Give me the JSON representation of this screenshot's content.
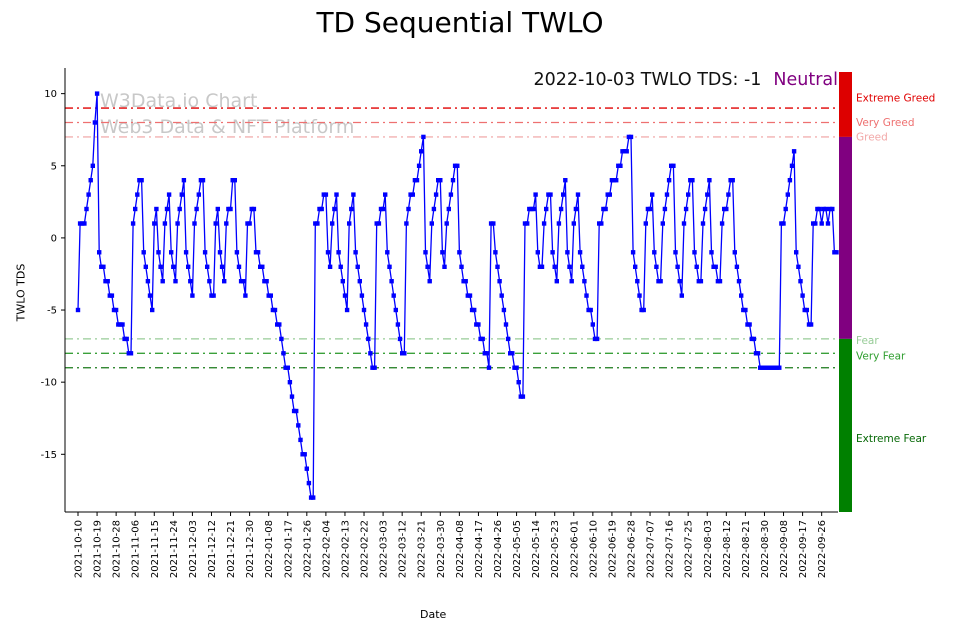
{
  "title": "TD Sequential TWLO",
  "watermark": {
    "line1": "W3Data.io Chart",
    "line2": "Web3 Data & NFT Platform"
  },
  "annotation": {
    "text": "2022-10-03 TWLO TDS: -1",
    "mood": "Neutral",
    "mood_color": "#800080"
  },
  "chart_data": {
    "type": "line",
    "title": "TD Sequential TWLO",
    "xlabel": "Date",
    "ylabel": "TWLO TDS",
    "ylim": [
      -19,
      11.5
    ],
    "yticks": [
      10,
      5,
      0,
      -5,
      -10,
      -15
    ],
    "line_color": "#0000ff",
    "marker": "square",
    "grid": false,
    "start_date": "2021-10-10",
    "end_date": "2022-10-03",
    "tick_every": 9,
    "x_tick_labels": [
      "2021-10-10",
      "2021-10-19",
      "2021-10-28",
      "2021-11-06",
      "2021-11-15",
      "2021-11-24",
      "2021-12-03",
      "2021-12-12",
      "2021-12-21",
      "2021-12-30",
      "2022-01-08",
      "2022-01-17",
      "2022-01-26",
      "2022-02-04",
      "2022-02-13",
      "2022-02-22",
      "2022-03-03",
      "2022-03-12",
      "2022-03-21",
      "2022-03-30",
      "2022-04-08",
      "2022-04-17",
      "2022-04-26",
      "2022-05-05",
      "2022-05-14",
      "2022-05-23",
      "2022-06-01",
      "2022-06-10",
      "2022-06-19",
      "2022-06-28",
      "2022-07-07",
      "2022-07-16",
      "2022-07-25",
      "2022-08-03",
      "2022-08-12",
      "2022-08-21",
      "2022-08-30",
      "2022-09-08",
      "2022-09-17",
      "2022-09-26"
    ],
    "values": [
      -5,
      1,
      1,
      1,
      2,
      3,
      4,
      5,
      8,
      10,
      -1,
      -2,
      -2,
      -3,
      -3,
      -4,
      -4,
      -5,
      -5,
      -6,
      -6,
      -6,
      -7,
      -7,
      -8,
      -8,
      1,
      2,
      3,
      4,
      4,
      -1,
      -2,
      -3,
      -4,
      -5,
      1,
      2,
      -1,
      -2,
      -3,
      1,
      2,
      3,
      -1,
      -2,
      -3,
      1,
      2,
      3,
      4,
      -1,
      -2,
      -3,
      -4,
      1,
      2,
      3,
      4,
      4,
      -1,
      -2,
      -3,
      -4,
      -4,
      1,
      2,
      -1,
      -2,
      -3,
      1,
      2,
      2,
      4,
      4,
      -1,
      -2,
      -3,
      -3,
      -4,
      1,
      1,
      2,
      2,
      -1,
      -1,
      -2,
      -2,
      -3,
      -3,
      -4,
      -4,
      -5,
      -5,
      -6,
      -6,
      -7,
      -8,
      -9,
      -9,
      -10,
      -11,
      -12,
      -12,
      -13,
      -14,
      -15,
      -15,
      -16,
      -17,
      -18,
      -18,
      1,
      1,
      2,
      2,
      3,
      3,
      -1,
      -2,
      1,
      2,
      3,
      -1,
      -2,
      -3,
      -4,
      -5,
      1,
      2,
      3,
      -1,
      -2,
      -3,
      -4,
      -5,
      -6,
      -7,
      -8,
      -9,
      -9,
      1,
      1,
      2,
      2,
      3,
      -1,
      -2,
      -3,
      -4,
      -5,
      -6,
      -7,
      -8,
      -8,
      1,
      2,
      3,
      3,
      4,
      4,
      5,
      6,
      7,
      -1,
      -2,
      -3,
      1,
      2,
      3,
      4,
      4,
      -1,
      -2,
      1,
      2,
      3,
      4,
      5,
      5,
      -1,
      -2,
      -3,
      -3,
      -4,
      -4,
      -5,
      -5,
      -6,
      -6,
      -7,
      -7,
      -8,
      -8,
      -9,
      1,
      1,
      -1,
      -2,
      -3,
      -4,
      -5,
      -6,
      -7,
      -8,
      -8,
      -9,
      -9,
      -10,
      -11,
      -11,
      1,
      1,
      2,
      2,
      2,
      3,
      -1,
      -2,
      -2,
      1,
      2,
      3,
      3,
      -1,
      -2,
      -3,
      1,
      2,
      3,
      4,
      -1,
      -2,
      -3,
      1,
      2,
      3,
      -1,
      -2,
      -3,
      -4,
      -5,
      -5,
      -6,
      -7,
      -7,
      1,
      1,
      2,
      2,
      3,
      3,
      4,
      4,
      4,
      5,
      5,
      6,
      6,
      6,
      7,
      7,
      -1,
      -2,
      -3,
      -4,
      -5,
      -5,
      1,
      2,
      2,
      3,
      -1,
      -2,
      -3,
      -3,
      1,
      2,
      3,
      4,
      5,
      5,
      -1,
      -2,
      -3,
      -4,
      1,
      2,
      3,
      4,
      4,
      -1,
      -2,
      -3,
      -3,
      1,
      2,
      3,
      4,
      -1,
      -2,
      -2,
      -3,
      -3,
      1,
      2,
      2,
      3,
      4,
      4,
      -1,
      -2,
      -3,
      -4,
      -5,
      -5,
      -6,
      -6,
      -7,
      -7,
      -8,
      -8,
      -9,
      -9,
      -9,
      -9,
      -9,
      -9,
      -9,
      -9,
      -9,
      -9,
      1,
      1,
      2,
      3,
      4,
      5,
      6,
      -1,
      -2,
      -3,
      -4,
      -5,
      -5,
      -6,
      -6,
      1,
      1,
      2,
      2,
      1,
      2,
      2,
      1,
      2,
      2,
      -1,
      -1
    ],
    "thresholds": [
      {
        "value": 9,
        "color": "#e00000",
        "label": "Extreme Greed"
      },
      {
        "value": 8,
        "color": "#ee7070",
        "label": "Very Greed"
      },
      {
        "value": 7,
        "color": "#f2b0b0",
        "label": "Greed"
      },
      {
        "value": -7,
        "color": "#97cc97",
        "label": "Fear"
      },
      {
        "value": -8,
        "color": "#3aa03a",
        "label": "Very Fear"
      },
      {
        "value": -9,
        "color": "#1a7a1a",
        "label": "Extreme Fear"
      }
    ],
    "zone_labels": [
      {
        "text": "Extreme Greed",
        "value": 9.7,
        "color": "#e00000"
      },
      {
        "text": "Very Greed",
        "value": 8.0,
        "color": "#ee7070"
      },
      {
        "text": "Greed",
        "value": 7.0,
        "color": "#f2a8a8"
      },
      {
        "text": "Fear",
        "value": -7.1,
        "color": "#97cc97"
      },
      {
        "text": "Very Fear",
        "value": -8.2,
        "color": "#2f9e2f"
      },
      {
        "text": "Extreme Fear",
        "value": -13.9,
        "color": "#066806"
      }
    ],
    "sentiment_bar": [
      {
        "zone": "greed",
        "color": "#dd0000",
        "from": 11.5,
        "to": 7
      },
      {
        "zone": "neutral",
        "color": "#800080",
        "from": 7,
        "to": -7
      },
      {
        "zone": "fear",
        "color": "#008000",
        "from": -7,
        "to": -19
      }
    ]
  }
}
